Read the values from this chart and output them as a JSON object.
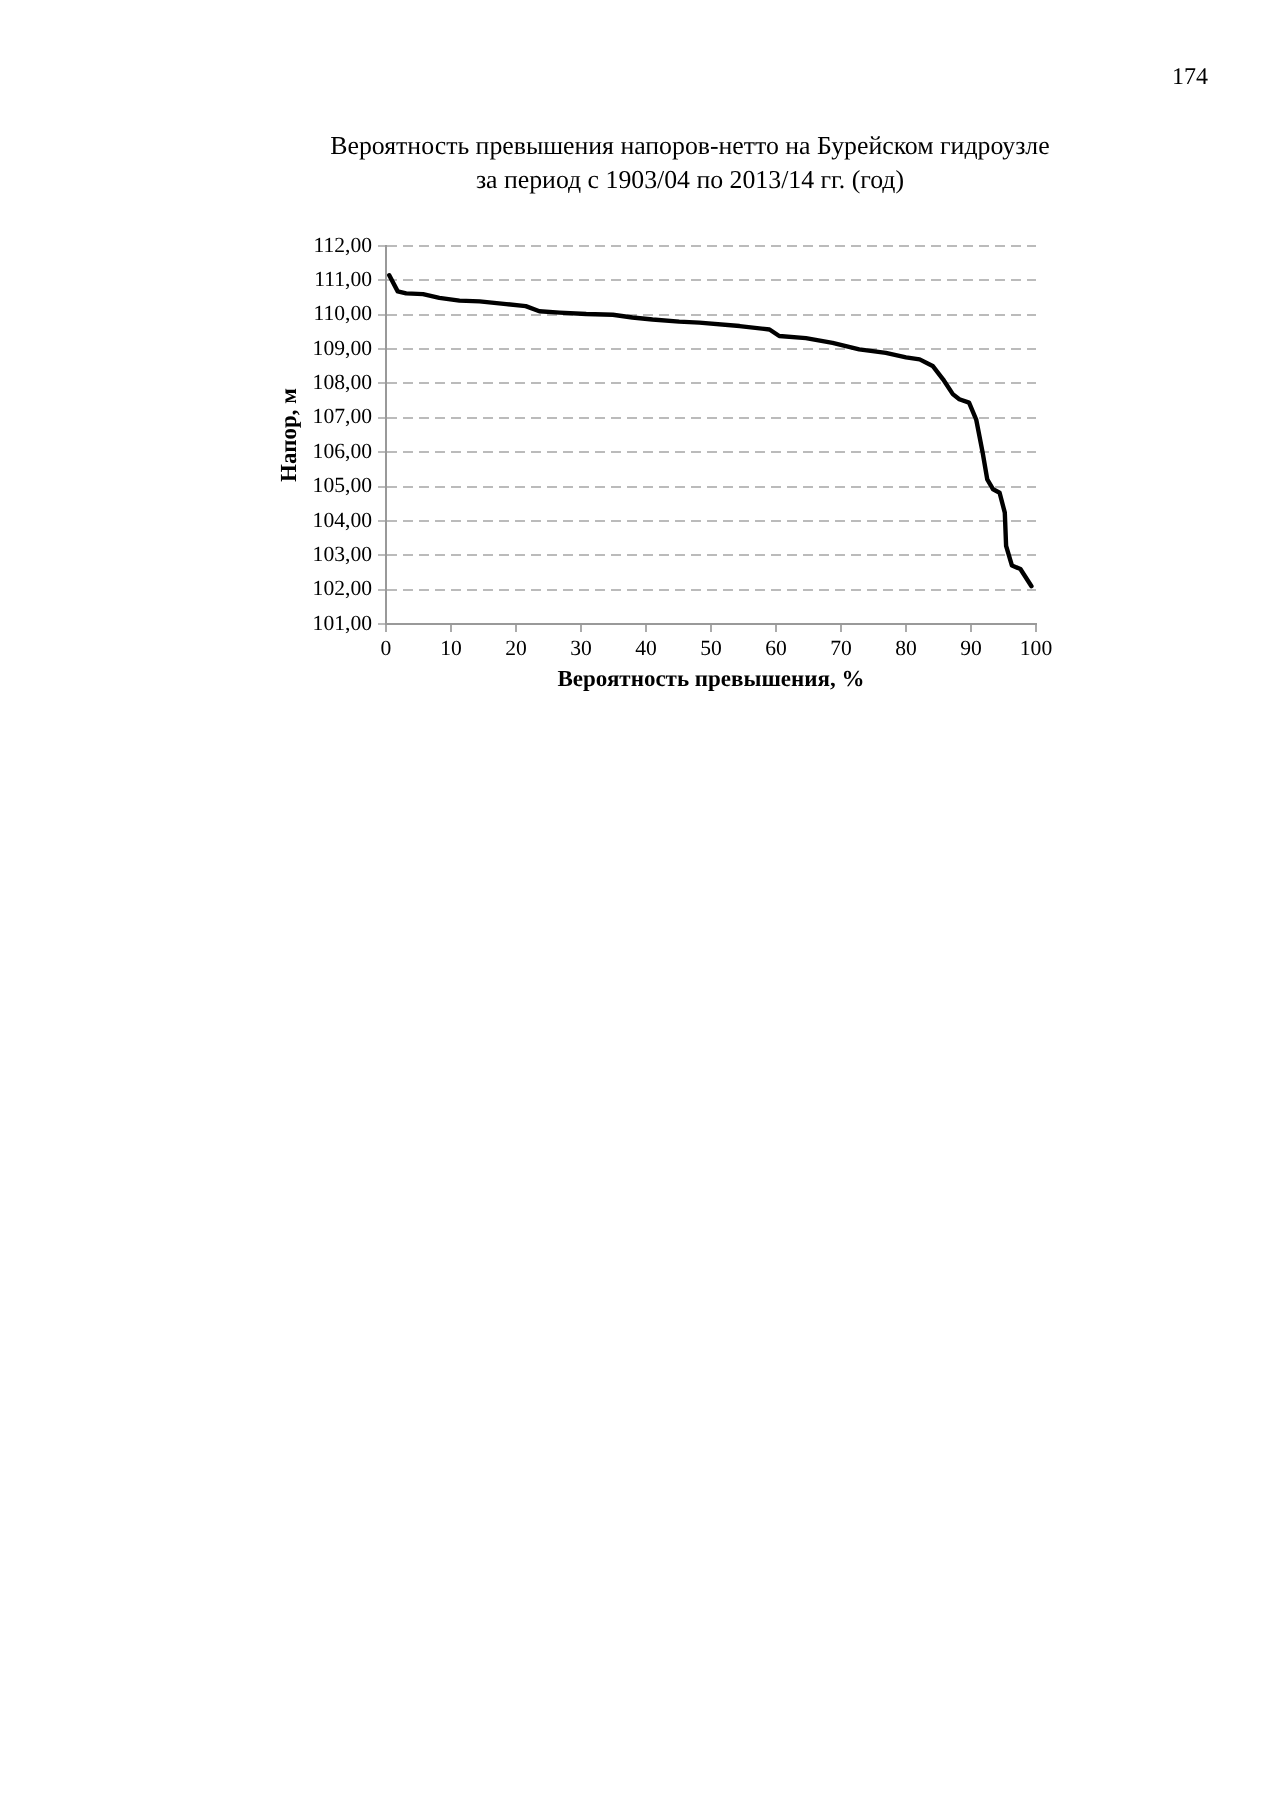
{
  "chart_data": {
    "type": "line",
    "title": "Вероятность превышения напоров-нетто на Бурейском гидроузле за период с 1903/04 по 2013/14 гг. (год)",
    "xlabel": "Вероятность превышения, %",
    "ylabel": "Напор, м",
    "annotations": [
      "174"
    ],
    "x": [
      0.5,
      1.8,
      3.1,
      5.7,
      8.2,
      11.3,
      14.4,
      18.5,
      21.5,
      23.6,
      26.7,
      30.8,
      34.9,
      37.9,
      41,
      45.1,
      48.2,
      54.4,
      59,
      60.5,
      64.6,
      68.7,
      72.8,
      76.9,
      80,
      82.1,
      84.1,
      85.7,
      87.2,
      88.2,
      89.7,
      90.8,
      91.8,
      92.5,
      93.4,
      94.4,
      95.2,
      95.4,
      96.3,
      97.6,
      99.3
    ],
    "series": [
      {
        "color": "#000000",
        "values": [
          111.15,
          110.68,
          110.62,
          110.6,
          110.49,
          110.41,
          110.39,
          110.31,
          110.25,
          110.1,
          110.06,
          110.02,
          110.0,
          109.92,
          109.86,
          109.8,
          109.77,
          109.67,
          109.57,
          109.38,
          109.32,
          109.18,
          108.99,
          108.89,
          108.76,
          108.7,
          108.51,
          108.12,
          107.69,
          107.54,
          107.44,
          106.95,
          105.98,
          105.21,
          104.92,
          104.82,
          104.24,
          103.27,
          102.7,
          102.6,
          102.1
        ]
      }
    ],
    "xlim": [
      0,
      100
    ],
    "xticks": [
      0,
      10,
      20,
      30,
      40,
      50,
      60,
      70,
      80,
      90,
      100
    ],
    "ylim": [
      101,
      112
    ],
    "yticks": [
      {
        "value": 101,
        "label": "101,00"
      },
      {
        "value": 102,
        "label": "102,00"
      },
      {
        "value": 103,
        "label": "103,00"
      },
      {
        "value": 104,
        "label": "104,00"
      },
      {
        "value": 105,
        "label": "105,00"
      },
      {
        "value": 106,
        "label": "106,00"
      },
      {
        "value": 107,
        "label": "107,00"
      },
      {
        "value": 108,
        "label": "108,00"
      },
      {
        "value": 109,
        "label": "109,00"
      },
      {
        "value": 110,
        "label": "110,00"
      },
      {
        "value": 111,
        "label": "111,00"
      },
      {
        "value": 112,
        "label": "112,00"
      }
    ],
    "grid": "y",
    "legend": false,
    "marker": "none",
    "line_style": "solid"
  }
}
